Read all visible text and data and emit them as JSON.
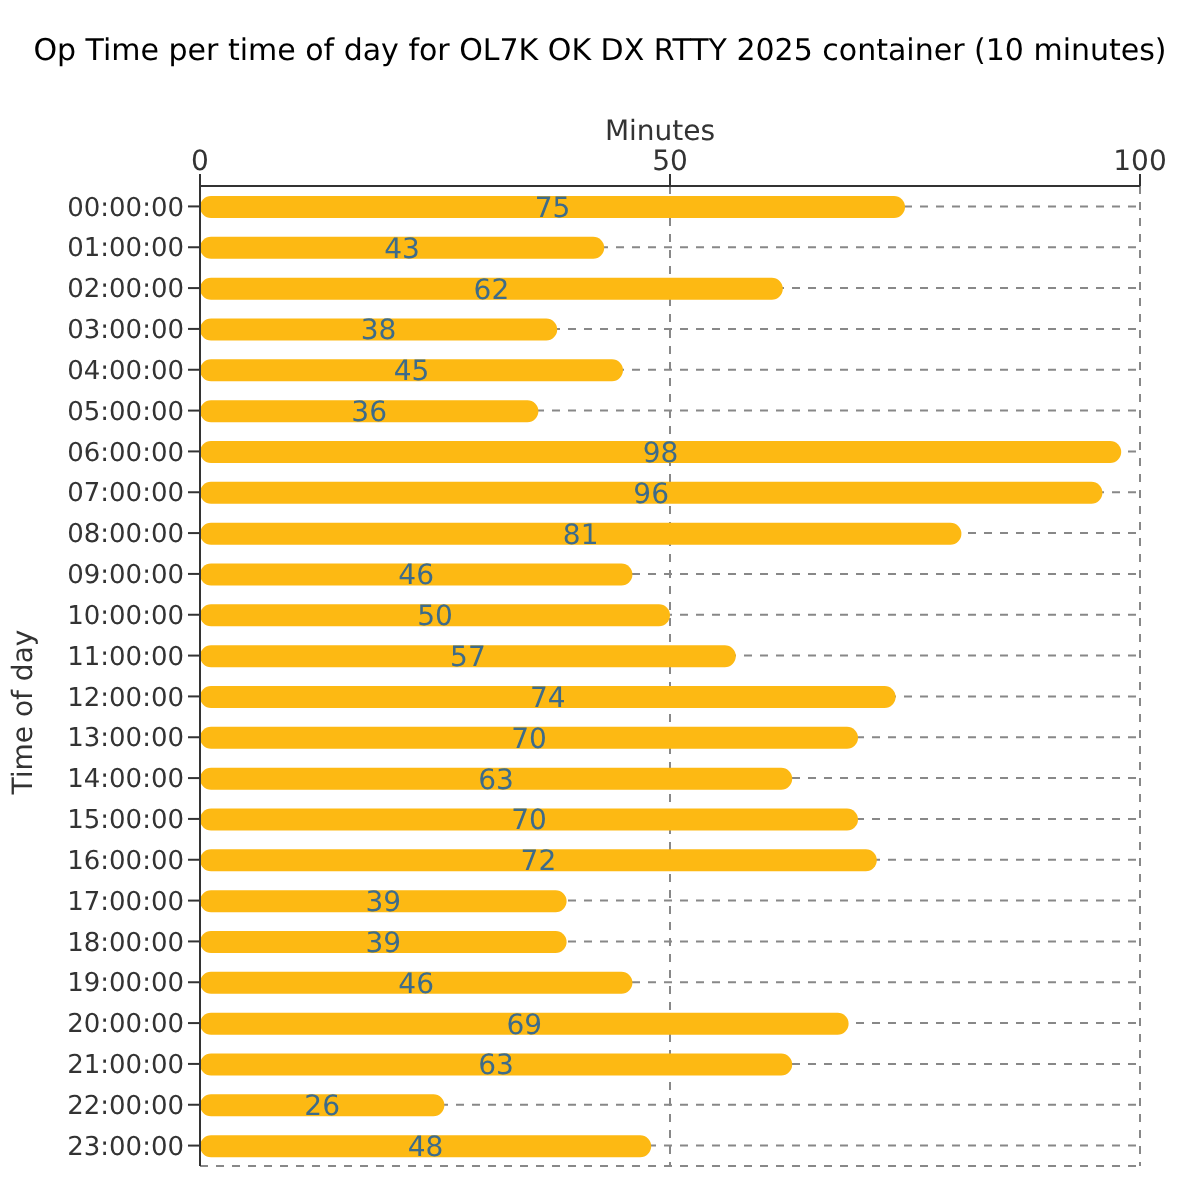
{
  "chart_data": {
    "type": "bar",
    "orientation": "horizontal",
    "title": "Op Time per time of day for OL7K OK DX RTTY 2025 container (10 minutes)",
    "xlabel": "Minutes",
    "ylabel": "Time of day",
    "categories": [
      "00:00:00",
      "01:00:00",
      "02:00:00",
      "03:00:00",
      "04:00:00",
      "05:00:00",
      "06:00:00",
      "07:00:00",
      "08:00:00",
      "09:00:00",
      "10:00:00",
      "11:00:00",
      "12:00:00",
      "13:00:00",
      "14:00:00",
      "15:00:00",
      "16:00:00",
      "17:00:00",
      "18:00:00",
      "19:00:00",
      "20:00:00",
      "21:00:00",
      "22:00:00",
      "23:00:00"
    ],
    "values": [
      75,
      43,
      62,
      38,
      45,
      36,
      98,
      96,
      81,
      46,
      50,
      57,
      74,
      70,
      63,
      70,
      72,
      39,
      39,
      46,
      69,
      63,
      26,
      48
    ],
    "color": "#fdb913",
    "xlim": [
      0,
      100
    ],
    "xticks": [
      0,
      50,
      100
    ],
    "grid": true,
    "data_labels": true
  }
}
